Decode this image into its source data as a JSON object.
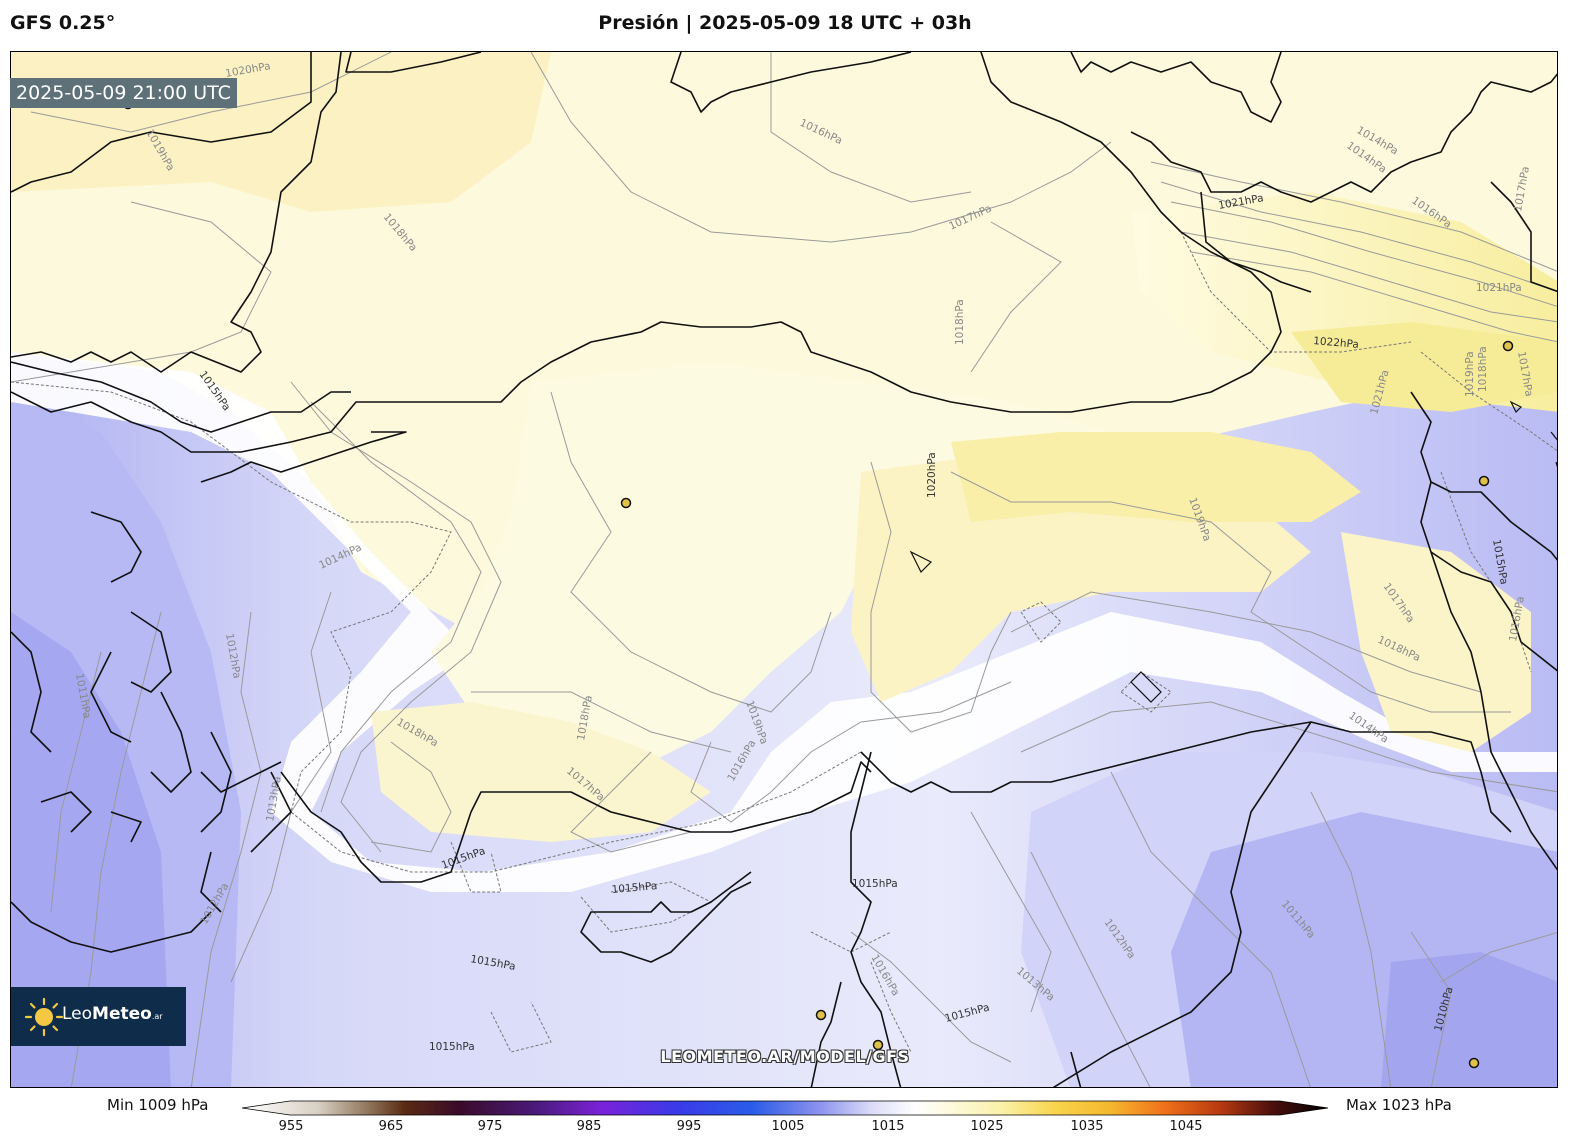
{
  "header": {
    "model": "GFS 0.25°",
    "title": "Presión | 2025-05-09 18 UTC + 03h"
  },
  "map": {
    "valid_time": "2025-05-09 21:00 UTC",
    "url": "LEOMETEO.AR/MODEL/GFS",
    "contour_labels": [
      {
        "text": "1020hPa"
      },
      {
        "text": "1019hPa"
      },
      {
        "text": "1018hPa"
      },
      {
        "text": "1016hPa"
      },
      {
        "text": "1017hPa"
      },
      {
        "text": "1018hPa"
      },
      {
        "text": "1014hPa"
      },
      {
        "text": "1014hPa"
      },
      {
        "text": "1021hPa"
      },
      {
        "text": "1016hPa"
      },
      {
        "text": "1017hPa"
      },
      {
        "text": "1021hPa"
      },
      {
        "text": "1022hPa"
      },
      {
        "text": "1019hPa"
      },
      {
        "text": "1018hPa"
      },
      {
        "text": "1017hPa"
      },
      {
        "text": "1021hPa"
      },
      {
        "text": "1015hPa"
      },
      {
        "text": "1020hPa"
      },
      {
        "text": "1019hPa"
      },
      {
        "text": "1014hPa"
      },
      {
        "text": "1015hPa"
      },
      {
        "text": "1017hPa"
      },
      {
        "text": "1016hPa"
      },
      {
        "text": "1018hPa"
      },
      {
        "text": "1012hPa"
      },
      {
        "text": "1011hPa"
      },
      {
        "text": "1018hPa"
      },
      {
        "text": "1018hPa"
      },
      {
        "text": "1019hPa"
      },
      {
        "text": "1017hPa"
      },
      {
        "text": "1016hPa"
      },
      {
        "text": "1014hPa"
      },
      {
        "text": "1013hPa"
      },
      {
        "text": "1015hPa"
      },
      {
        "text": "1015hPa"
      },
      {
        "text": "1015hPa"
      },
      {
        "text": "1012hPa"
      },
      {
        "text": "1015hPa"
      },
      {
        "text": "1016hPa"
      },
      {
        "text": "1015hPa"
      },
      {
        "text": "1013hPa"
      },
      {
        "text": "1012hPa"
      },
      {
        "text": "1011hPa"
      },
      {
        "text": "1010hPa"
      },
      {
        "text": "1015hPa"
      }
    ]
  },
  "logo": {
    "brand_light": "Leo",
    "brand_bold": "Meteo",
    "suffix": ".ar"
  },
  "colorbar": {
    "min_label": "Min 1009 hPa",
    "max_label": "Max 1023 hPa",
    "ticks": [
      "955",
      "965",
      "975",
      "985",
      "995",
      "1005",
      "1015",
      "1025",
      "1035",
      "1045"
    ]
  },
  "colors": {
    "high_pressure": "#fbf3b8",
    "neutral": "#ffffff",
    "low_pressure": "#a9abf2",
    "coastline": "#111111"
  }
}
